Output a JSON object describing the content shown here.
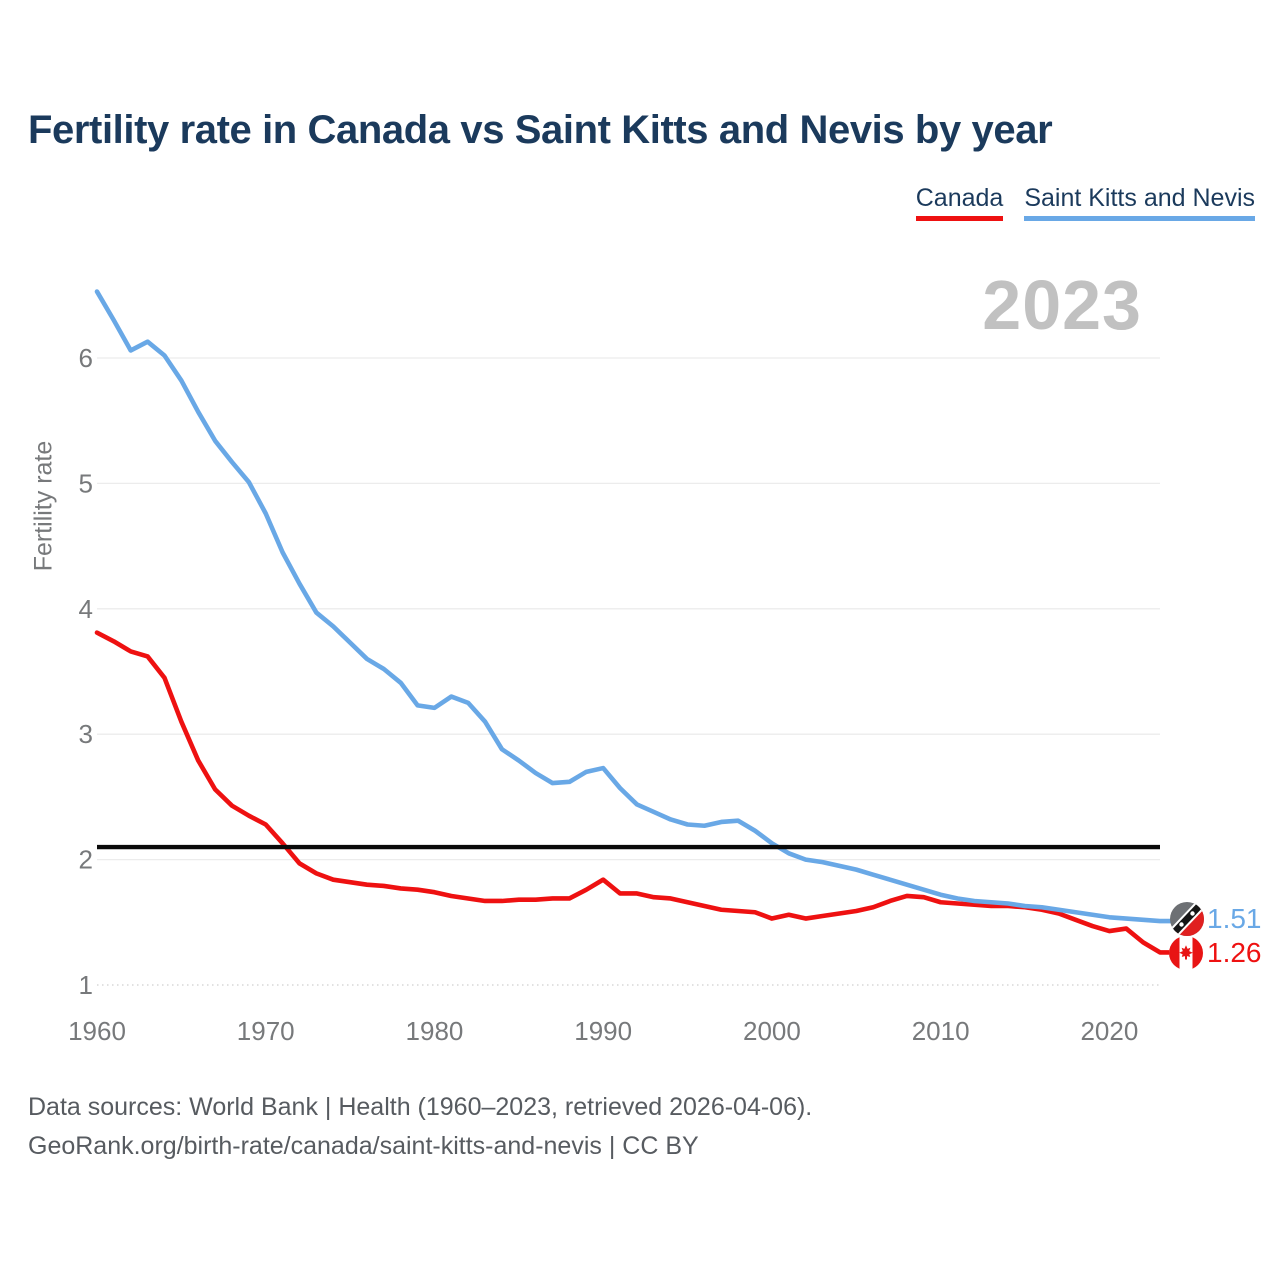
{
  "header": {
    "title": "Fertility rate in Canada vs Saint Kitts and Nevis by year"
  },
  "legend": {
    "items": [
      {
        "label": "Canada",
        "color": "#ee1111"
      },
      {
        "label": "Saint Kitts and Nevis",
        "color": "#69a8e6"
      }
    ]
  },
  "watermark": "2023",
  "axis": {
    "y_label": "Fertility rate"
  },
  "footer": {
    "line1": "Data sources: World Bank | Health (1960–2023, retrieved 2026-04-06).",
    "line2": "GeoRank.org/birth-rate/canada/saint-kitts-and-nevis | CC BY"
  },
  "chart_data": {
    "type": "line",
    "title": "Fertility rate in Canada vs Saint Kitts and Nevis by year",
    "xlabel": "",
    "ylabel": "Fertility rate",
    "x_ticks": [
      1960,
      1970,
      1980,
      1990,
      2000,
      2010,
      2020
    ],
    "y_ticks": [
      1,
      2,
      3,
      4,
      5,
      6
    ],
    "xlim": [
      1960,
      2023
    ],
    "ylim": [
      0.9,
      6.6
    ],
    "grid": true,
    "legend_position": "top-right",
    "reference_line": {
      "value": 2.1,
      "color": "#0a0a0a"
    },
    "x": [
      1960,
      1961,
      1962,
      1963,
      1964,
      1965,
      1966,
      1967,
      1968,
      1969,
      1970,
      1971,
      1972,
      1973,
      1974,
      1975,
      1976,
      1977,
      1978,
      1979,
      1980,
      1981,
      1982,
      1983,
      1984,
      1985,
      1986,
      1987,
      1988,
      1989,
      1990,
      1991,
      1992,
      1993,
      1994,
      1995,
      1996,
      1997,
      1998,
      1999,
      2000,
      2001,
      2002,
      2003,
      2004,
      2005,
      2006,
      2007,
      2008,
      2009,
      2010,
      2011,
      2012,
      2013,
      2014,
      2015,
      2016,
      2017,
      2018,
      2019,
      2020,
      2021,
      2022,
      2023
    ],
    "series": [
      {
        "name": "Canada",
        "color": "#ee1111",
        "end_label": "1.26",
        "flag": "canada",
        "values": [
          3.81,
          3.74,
          3.66,
          3.62,
          3.45,
          3.1,
          2.79,
          2.56,
          2.43,
          2.35,
          2.28,
          2.13,
          1.97,
          1.89,
          1.84,
          1.82,
          1.8,
          1.79,
          1.77,
          1.76,
          1.74,
          1.71,
          1.69,
          1.67,
          1.67,
          1.68,
          1.68,
          1.69,
          1.69,
          1.76,
          1.84,
          1.73,
          1.73,
          1.7,
          1.69,
          1.66,
          1.63,
          1.6,
          1.59,
          1.58,
          1.53,
          1.56,
          1.53,
          1.55,
          1.57,
          1.59,
          1.62,
          1.67,
          1.71,
          1.7,
          1.66,
          1.65,
          1.64,
          1.63,
          1.63,
          1.62,
          1.6,
          1.57,
          1.52,
          1.47,
          1.43,
          1.45,
          1.34,
          1.26
        ]
      },
      {
        "name": "Saint Kitts and Nevis",
        "color": "#69a8e6",
        "end_label": "1.51",
        "flag": "saint-kitts-and-nevis",
        "values": [
          6.53,
          6.3,
          6.06,
          6.13,
          6.02,
          5.82,
          5.57,
          5.34,
          5.17,
          5.01,
          4.76,
          4.45,
          4.2,
          3.97,
          3.86,
          3.73,
          3.6,
          3.52,
          3.41,
          3.23,
          3.21,
          3.3,
          3.25,
          3.1,
          2.88,
          2.79,
          2.69,
          2.61,
          2.62,
          2.7,
          2.73,
          2.57,
          2.44,
          2.38,
          2.32,
          2.28,
          2.27,
          2.3,
          2.31,
          2.23,
          2.13,
          2.05,
          2.0,
          1.98,
          1.95,
          1.92,
          1.88,
          1.84,
          1.8,
          1.76,
          1.72,
          1.69,
          1.67,
          1.66,
          1.65,
          1.63,
          1.62,
          1.6,
          1.58,
          1.56,
          1.54,
          1.53,
          1.52,
          1.51
        ]
      }
    ]
  }
}
